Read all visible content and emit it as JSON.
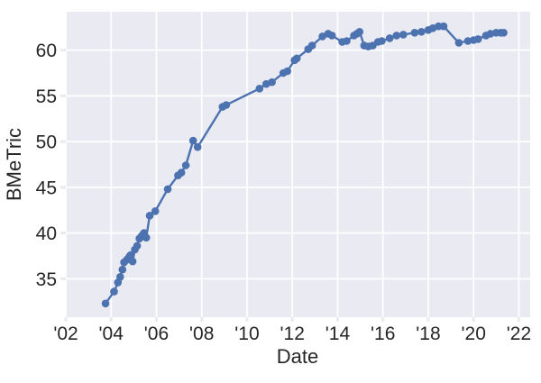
{
  "style": {
    "figure_background": "#ffffff",
    "plot_background": "#eaeaf2",
    "grid_color": "#ffffff",
    "line_color": "#4c72b0",
    "marker_color": "#4c72b0",
    "text_color": "#262626"
  },
  "chart_data": {
    "type": "line",
    "title": "",
    "xlabel": "Date",
    "ylabel": "BMeTric",
    "grid": true,
    "legend": false,
    "marker": "circle",
    "xlim": [
      2002.0,
      2022.5
    ],
    "ylim": [
      30.8,
      64.2
    ],
    "xticks": {
      "values": [
        2002,
        2004,
        2006,
        2008,
        2010,
        2012,
        2014,
        2016,
        2018,
        2020,
        2022
      ],
      "labels": [
        "'02",
        "'04",
        "'06",
        "'08",
        "'10",
        "'12",
        "'14",
        "'16",
        "'18",
        "'20",
        "'22"
      ]
    },
    "yticks": {
      "values": [
        35,
        40,
        45,
        50,
        55,
        60
      ],
      "labels": [
        "35",
        "40",
        "45",
        "50",
        "55",
        "60"
      ]
    },
    "series": [
      {
        "x": [
          2003.75,
          2004.13,
          2004.3,
          2004.4,
          2004.5,
          2004.57,
          2004.7,
          2004.8,
          2004.86,
          2004.95,
          2005.05,
          2005.15,
          2005.25,
          2005.35,
          2005.45,
          2005.55,
          2005.7,
          2005.95,
          2006.5,
          2006.95,
          2007.1,
          2007.3,
          2007.62,
          2007.82,
          2008.92,
          2009.08,
          2010.55,
          2010.85,
          2011.1,
          2011.6,
          2011.78,
          2012.1,
          2012.2,
          2012.7,
          2012.87,
          2013.33,
          2013.58,
          2013.75,
          2014.2,
          2014.4,
          2014.72,
          2014.85,
          2014.97,
          2015.17,
          2015.35,
          2015.55,
          2015.78,
          2015.95,
          2016.3,
          2016.6,
          2016.9,
          2017.4,
          2017.7,
          2018.0,
          2018.2,
          2018.45,
          2018.68,
          2019.35,
          2019.75,
          2020.0,
          2020.2,
          2020.55,
          2020.75,
          2021.0,
          2021.2,
          2021.33
        ],
        "y": [
          32.3,
          33.6,
          34.6,
          35.2,
          36.0,
          36.8,
          37.1,
          37.4,
          37.6,
          36.9,
          38.2,
          38.6,
          39.4,
          39.7,
          40.0,
          39.5,
          41.9,
          42.4,
          44.8,
          46.3,
          46.6,
          47.4,
          50.1,
          49.4,
          53.8,
          54.0,
          55.8,
          56.3,
          56.5,
          57.5,
          57.7,
          58.9,
          59.1,
          60.1,
          60.5,
          61.5,
          61.8,
          61.6,
          60.9,
          61.0,
          61.6,
          61.8,
          62.0,
          60.5,
          60.4,
          60.5,
          60.9,
          61.0,
          61.3,
          61.6,
          61.7,
          61.9,
          62.0,
          62.2,
          62.4,
          62.6,
          62.6,
          60.8,
          61.0,
          61.1,
          61.2,
          61.6,
          61.8,
          61.9,
          61.9,
          61.9
        ]
      }
    ]
  }
}
